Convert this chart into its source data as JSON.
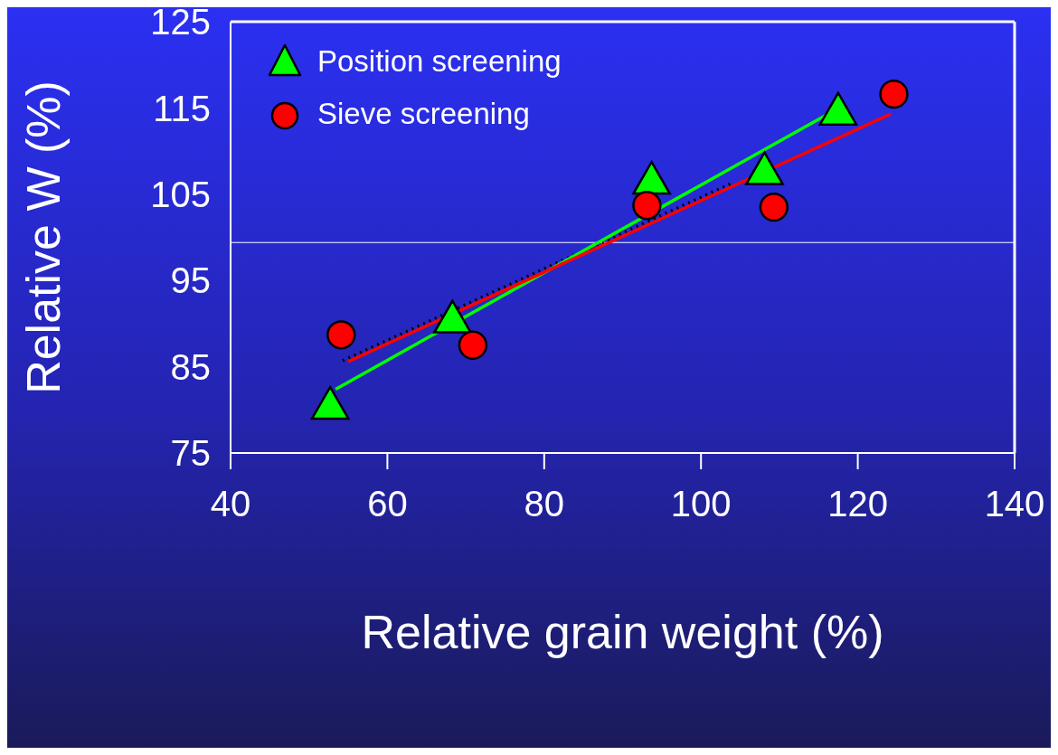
{
  "chart_data": {
    "type": "scatter",
    "xlabel": "Relative grain weight  (%)",
    "ylabel": "Relative W (%)",
    "xlim": [
      40,
      140
    ],
    "xticks": [
      40,
      60,
      80,
      100,
      120,
      140
    ],
    "ylim": [
      75,
      125
    ],
    "yticks": [
      75,
      85,
      95,
      105,
      115,
      125
    ],
    "grid": false,
    "legend": "top left",
    "series": [
      {
        "name": "Position screening",
        "color": "#00ff00",
        "marker": "triangle",
        "x": [
          52.7,
          68.3,
          93.7,
          108.1,
          117.5
        ],
        "values": [
          80.2,
          90.2,
          106.3,
          107.4,
          114.3
        ]
      },
      {
        "name": "Sieve screening",
        "color": "#ff0000",
        "marker": "circle",
        "x": [
          54.1,
          70.9,
          93.1,
          109.3,
          124.6
        ],
        "values": [
          88.7,
          87.5,
          103.7,
          103.5,
          116.6
        ]
      },
      {
        "type": "line",
        "color": "#000000",
        "line_style": "dotted",
        "x": [
          54.3,
          104
        ],
        "values": [
          85.7,
          106.3
        ]
      },
      {
        "type": "line",
        "color": "#00ff00",
        "line_style": "solid",
        "x": [
          53.4,
          116.8
        ],
        "values": [
          82.4,
          114.6
        ]
      },
      {
        "type": "line",
        "color": "#ff0000",
        "line_style": "solid",
        "x": [
          55,
          124.2
        ],
        "values": [
          85.6,
          114.3
        ]
      }
    ],
    "ref_lines": [
      {
        "axis": "y",
        "value": 99.4,
        "label": null,
        "color": "#ffffff"
      }
    ]
  }
}
